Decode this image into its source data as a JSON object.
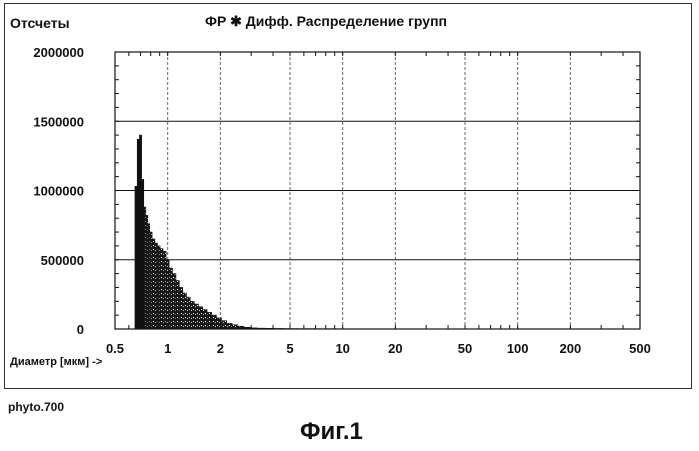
{
  "chart_data": {
    "type": "bar",
    "title": "ФР ✱ Дифф. Распределение групп",
    "ylabel": "Отсчеты",
    "xlabel": "Диаметр [мкм] ->",
    "x_scale": "log",
    "xlim": [
      0.5,
      500
    ],
    "ylim": [
      0,
      2000000
    ],
    "x_ticks": [
      "0.5",
      "1",
      "2",
      "5",
      "10",
      "20",
      "50",
      "100",
      "200",
      "500"
    ],
    "y_ticks": [
      "0",
      "500000",
      "1000000",
      "1500000",
      "2000000"
    ],
    "grid": true,
    "series": [
      {
        "x": [
          0.66,
          0.68,
          0.7,
          0.72,
          0.74,
          0.76,
          0.78,
          0.8,
          0.83,
          0.86,
          0.89,
          0.92,
          0.96,
          1.0,
          1.04,
          1.09,
          1.14,
          1.19,
          1.25,
          1.31,
          1.38,
          1.46,
          1.54,
          1.63,
          1.73,
          1.84,
          1.96,
          2.1,
          2.25,
          2.42,
          2.62,
          2.85,
          3.1,
          3.4,
          3.8,
          4.3,
          5.0,
          6.0,
          8.0,
          11.0,
          16.0,
          25.0,
          40.0
        ],
        "values": [
          1030000,
          1370000,
          1400000,
          1080000,
          880000,
          820000,
          760000,
          700000,
          650000,
          620000,
          600000,
          580000,
          560000,
          500000,
          440000,
          400000,
          350000,
          300000,
          260000,
          230000,
          200000,
          180000,
          160000,
          140000,
          120000,
          100000,
          80000,
          60000,
          40000,
          30000,
          20000,
          12000,
          8000,
          6000,
          5000,
          4000,
          3000,
          2500,
          2000,
          1500,
          1000,
          800,
          500
        ]
      }
    ]
  },
  "page": {
    "source_label": "phyto.700",
    "figure_caption": "Фиг.1"
  }
}
